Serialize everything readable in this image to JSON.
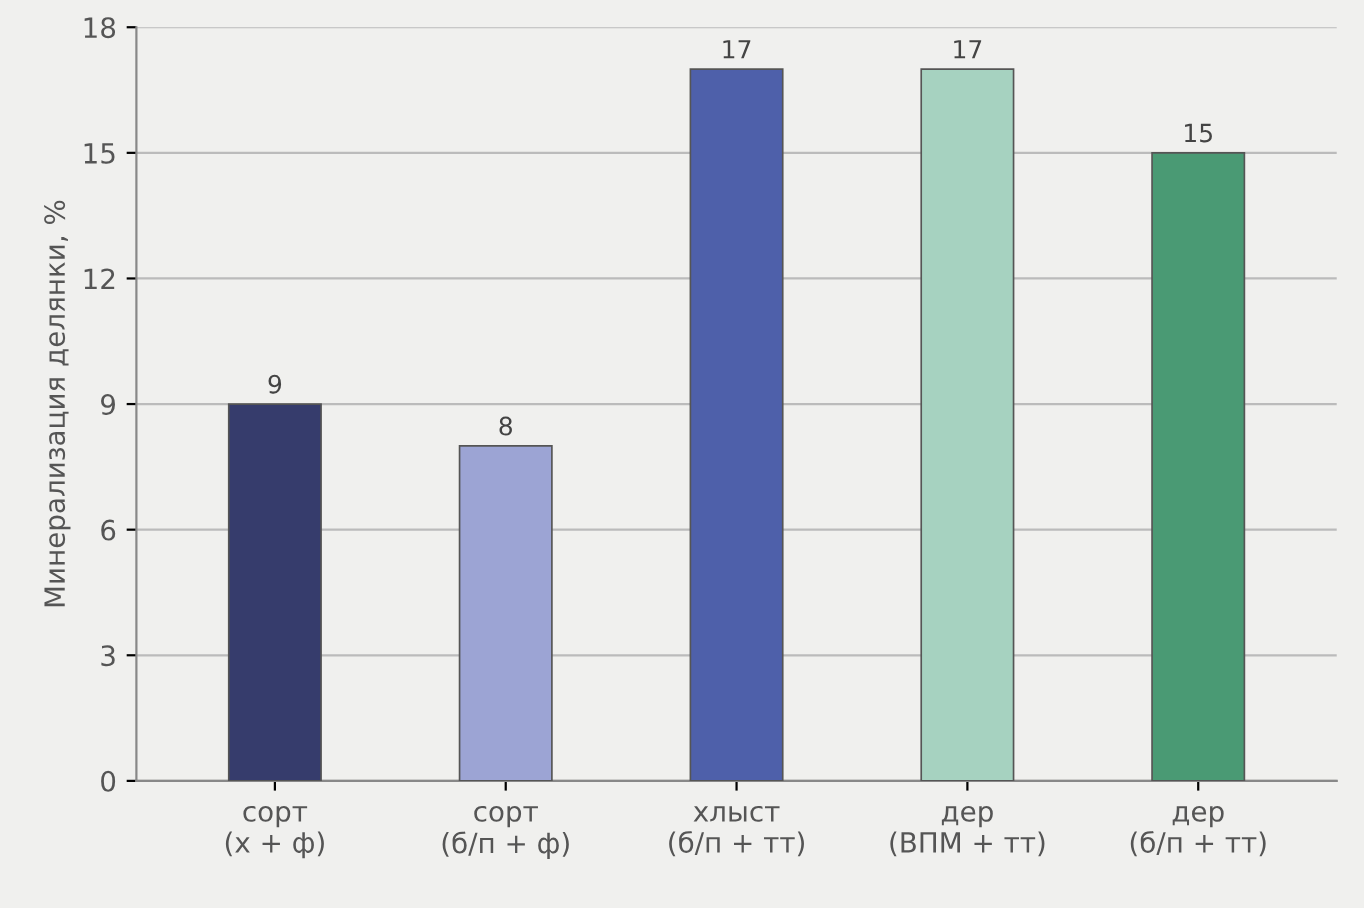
{
  "chart_data": {
    "type": "bar",
    "ylabel": "Минерализация делянки, %",
    "categories": [
      "сорт\n(х + ф)",
      "сорт\n(б/п + ф)",
      "хлыст\n(б/п + тт)",
      "дер\n(ВПМ + тт)",
      "дер\n(б/п + тт)"
    ],
    "values": [
      9,
      8,
      17,
      17,
      15
    ],
    "colors": [
      "#363c6c",
      "#9ca4d4",
      "#4e60aa",
      "#a6d2c0",
      "#4a9a74"
    ],
    "ylim": [
      0,
      18
    ],
    "yticks": [
      0,
      3,
      6,
      9,
      12,
      15,
      18
    ],
    "grid": "y",
    "data_labels": true
  }
}
